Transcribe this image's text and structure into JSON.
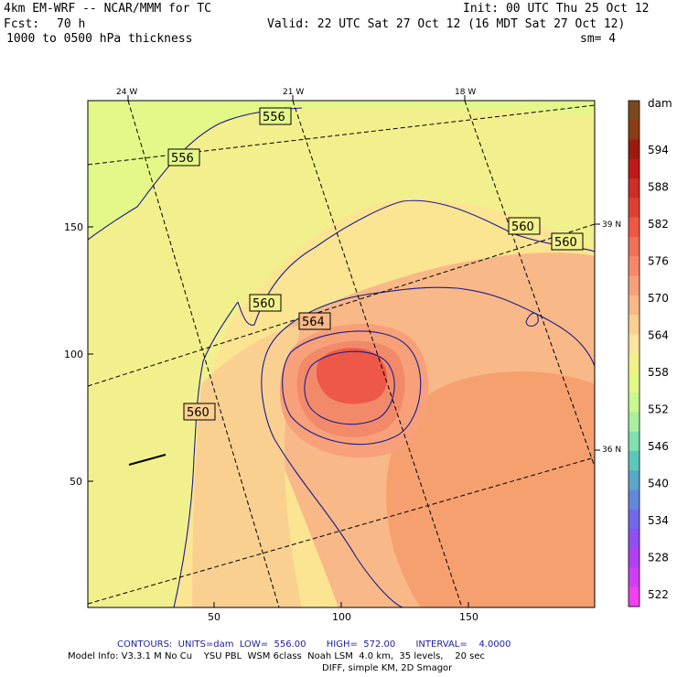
{
  "header": {
    "model": "4km EM-WRF -- NCAR/MMM for TC",
    "init": "Init: 00 UTC Thu 25 Oct 12",
    "fcst_label": "Fcst:",
    "fcst_value": "70 h",
    "valid": "Valid: 22 UTC Sat 27 Oct 12 (16 MDT Sat 27 Oct 12)",
    "field": "1000 to 0500 hPa thickness",
    "smoothing": "sm= 4"
  },
  "map": {
    "lon_labels": [
      "24 W",
      "21 W",
      "18 W"
    ],
    "lat_labels": [
      "39 N",
      "36 N"
    ],
    "x_ticks": [
      "50",
      "100",
      "150"
    ],
    "y_ticks": [
      "150",
      "100",
      "50"
    ],
    "contour_labels": [
      "556",
      "556",
      "560",
      "560",
      "560",
      "560",
      "564"
    ]
  },
  "colorbar": {
    "unit": "dam",
    "levels": [
      "594",
      "588",
      "582",
      "576",
      "570",
      "564",
      "558",
      "552",
      "546",
      "540",
      "534",
      "528",
      "522"
    ],
    "colors": [
      "#7a4a1c",
      "#8c3c14",
      "#9c1a10",
      "#c01818",
      "#d02c28",
      "#e04034",
      "#f05644",
      "#f47058",
      "#f6886a",
      "#f8a07a",
      "#f8b887",
      "#fad091",
      "#fce49a",
      "#f4f08a",
      "#e4f88a",
      "#c8f890",
      "#a8f0a0",
      "#80e0b0",
      "#5cc8b8",
      "#5ca8c8",
      "#6488d8",
      "#7468e8",
      "#9050f0",
      "#b040f0",
      "#d040f0",
      "#f040f0"
    ]
  },
  "footer": {
    "contours": "CONTOURS:  UNITS=dam  LOW=  556.00       HIGH=  572.00       INTERVAL=    4.0000",
    "model_info": "Model Info: V3.3.1 M No Cu    YSU PBL  WSM 6class  Noah LSM  4.0 km,  35 levels,    20 sec",
    "model_info2": "DIFF, simple KM, 2D Smagor"
  }
}
